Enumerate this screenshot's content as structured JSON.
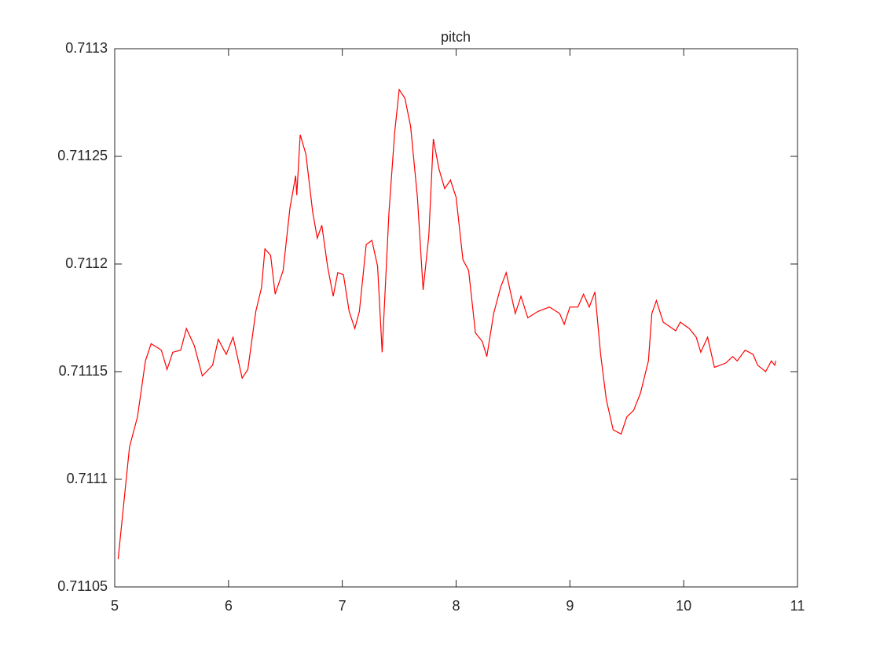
{
  "chart_data": {
    "type": "line",
    "title": "pitch",
    "x": [
      5.03,
      5.08,
      5.13,
      5.2,
      5.27,
      5.32,
      5.41,
      5.46,
      5.51,
      5.58,
      5.63,
      5.7,
      5.77,
      5.86,
      5.91,
      5.98,
      6.04,
      6.12,
      6.17,
      6.24,
      6.29,
      6.32,
      6.37,
      6.41,
      6.48,
      6.54,
      6.59,
      6.6,
      6.63,
      6.68,
      6.74,
      6.78,
      6.82,
      6.87,
      6.92,
      6.96,
      7.01,
      7.06,
      7.11,
      7.15,
      7.21,
      7.26,
      7.31,
      7.35,
      7.41,
      7.46,
      7.5,
      7.55,
      7.6,
      7.66,
      7.71,
      7.76,
      7.8,
      7.85,
      7.9,
      7.95,
      8.0,
      8.06,
      8.11,
      8.17,
      8.23,
      8.27,
      8.33,
      8.39,
      8.44,
      8.52,
      8.57,
      8.63,
      8.72,
      8.82,
      8.91,
      8.95,
      9.0,
      9.07,
      9.12,
      9.17,
      9.22,
      9.27,
      9.32,
      9.38,
      9.45,
      9.5,
      9.56,
      9.62,
      9.69,
      9.72,
      9.76,
      9.82,
      9.93,
      9.97,
      10.05,
      10.11,
      10.15,
      10.21,
      10.27,
      10.37,
      10.43,
      10.47,
      10.54,
      10.61,
      10.65,
      10.72,
      10.77,
      10.8,
      10.81
    ],
    "series": [
      {
        "color": "#ff0000",
        "values": [
          0.711063,
          0.711089,
          0.711115,
          0.711129,
          0.711155,
          0.711163,
          0.71116,
          0.711151,
          0.711159,
          0.71116,
          0.71117,
          0.711162,
          0.711148,
          0.711153,
          0.711165,
          0.711158,
          0.711166,
          0.711147,
          0.711151,
          0.711178,
          0.711189,
          0.711207,
          0.711204,
          0.711186,
          0.711197,
          0.711226,
          0.711241,
          0.711232,
          0.71126,
          0.711251,
          0.711224,
          0.711212,
          0.711218,
          0.711199,
          0.711185,
          0.711196,
          0.711195,
          0.711178,
          0.71117,
          0.711178,
          0.711209,
          0.711211,
          0.711199,
          0.711159,
          0.711224,
          0.711261,
          0.711281,
          0.711277,
          0.711264,
          0.711231,
          0.711188,
          0.711213,
          0.711258,
          0.711244,
          0.711235,
          0.711239,
          0.711231,
          0.711202,
          0.711197,
          0.711168,
          0.711164,
          0.711157,
          0.711177,
          0.711189,
          0.711196,
          0.711177,
          0.711185,
          0.711175,
          0.711178,
          0.71118,
          0.711177,
          0.711172,
          0.71118,
          0.71118,
          0.711186,
          0.71118,
          0.711187,
          0.711158,
          0.711137,
          0.711123,
          0.711121,
          0.711129,
          0.711132,
          0.71114,
          0.711155,
          0.711177,
          0.711183,
          0.711173,
          0.711169,
          0.711173,
          0.71117,
          0.711166,
          0.711159,
          0.711166,
          0.711152,
          0.711154,
          0.711157,
          0.711155,
          0.71116,
          0.711158,
          0.711153,
          0.71115,
          0.711155,
          0.711153,
          0.711155
        ]
      }
    ],
    "xlim": [
      5,
      11
    ],
    "xticks": [
      5,
      6,
      7,
      8,
      9,
      10,
      11
    ],
    "ylim": [
      0.71105,
      0.7113
    ],
    "yticks": [
      0.71105,
      0.7111,
      0.71115,
      0.7112,
      0.71125,
      0.7113
    ]
  }
}
